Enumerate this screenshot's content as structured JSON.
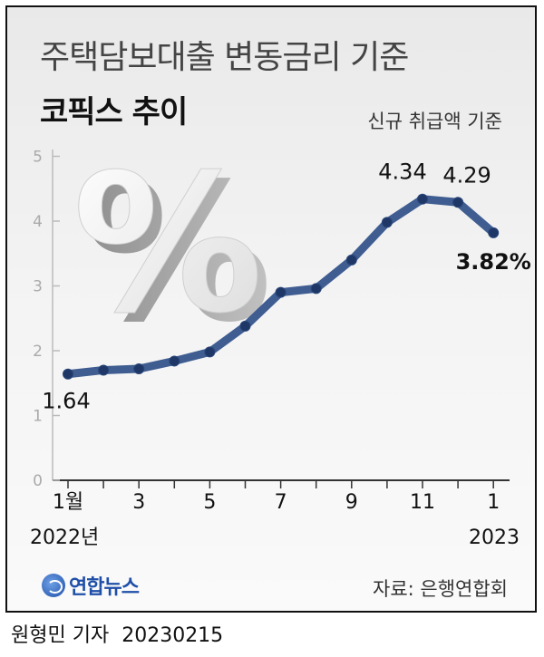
{
  "header": {
    "title": "주택담보대출 변동금리 기준",
    "subtitle": "코픽스 추이",
    "note": "신규 취급액 기준"
  },
  "chart_data": {
    "type": "line",
    "x": [
      "1월",
      "2",
      "3",
      "4",
      "5",
      "6",
      "7",
      "8",
      "9",
      "10",
      "11",
      "12",
      "1"
    ],
    "x_tick_labels": [
      "1월",
      "",
      "3",
      "",
      "5",
      "",
      "7",
      "",
      "9",
      "",
      "11",
      "",
      "1"
    ],
    "year_labels": {
      "start": "2022년",
      "end": "2023"
    },
    "series": [
      {
        "values": [
          1.64,
          1.7,
          1.72,
          1.84,
          1.98,
          2.38,
          2.9,
          2.96,
          3.4,
          3.98,
          4.34,
          4.29,
          3.82
        ]
      }
    ],
    "data_labels": [
      {
        "index": 0,
        "text": "1.64"
      },
      {
        "index": 10,
        "text": "4.34"
      },
      {
        "index": 11,
        "text": "4.29"
      },
      {
        "index": 12,
        "text": "3.82%"
      }
    ],
    "y_ticks": [
      "0",
      "1",
      "2",
      "3",
      "4",
      "5"
    ],
    "ylim": [
      0,
      5
    ],
    "line_color": "#3f5d91",
    "marker_color": "#1e3766",
    "grid": false
  },
  "decoration": {
    "symbol": "%"
  },
  "logo": {
    "text": "연합뉴스"
  },
  "source": "자료: 은행연합회",
  "footer": {
    "reporter": "원형민 기자",
    "date": "20230215"
  }
}
